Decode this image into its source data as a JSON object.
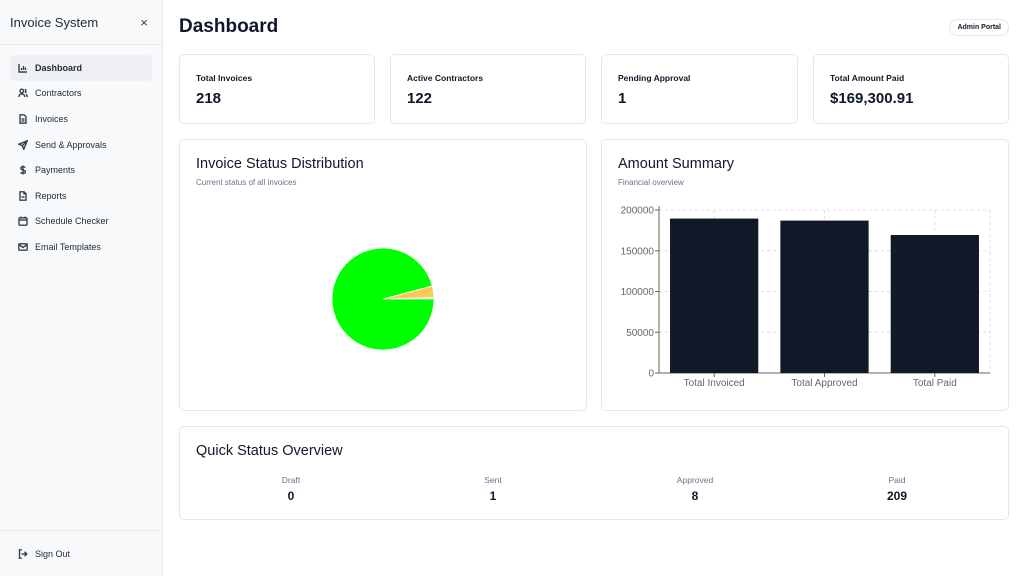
{
  "sidebar": {
    "title": "Invoice System",
    "close_icon": "×",
    "items": [
      {
        "label": "Dashboard",
        "icon": "bar-chart-icon",
        "active": true
      },
      {
        "label": "Contractors",
        "icon": "users-icon"
      },
      {
        "label": "Invoices",
        "icon": "file-icon"
      },
      {
        "label": "Send & Approvals",
        "icon": "send-icon"
      },
      {
        "label": "Payments",
        "icon": "dollar-icon"
      },
      {
        "label": "Reports",
        "icon": "report-icon"
      },
      {
        "label": "Schedule Checker",
        "icon": "calendar-icon"
      },
      {
        "label": "Email Templates",
        "icon": "mail-icon"
      }
    ],
    "sign_out": "Sign Out"
  },
  "header": {
    "title": "Dashboard",
    "badge": "Admin Portal"
  },
  "stats": [
    {
      "label": "Total Invoices",
      "value": "218"
    },
    {
      "label": "Active Contractors",
      "value": "122"
    },
    {
      "label": "Pending Approval",
      "value": "1"
    },
    {
      "label": "Total Amount Paid",
      "value": "$169,300.91"
    }
  ],
  "status_card": {
    "title": "Invoice Status Distribution",
    "subtitle": "Current status of all invoices"
  },
  "amount_card": {
    "title": "Amount Summary",
    "subtitle": "Financial overview"
  },
  "quick_status": {
    "title": "Quick Status Overview",
    "items": [
      {
        "label": "Draft",
        "value": "0"
      },
      {
        "label": "Sent",
        "value": "1"
      },
      {
        "label": "Approved",
        "value": "8"
      },
      {
        "label": "Paid",
        "value": "209"
      }
    ]
  },
  "colors": {
    "paid": "#00ff00",
    "approved": "#ffc658",
    "bar": "#111827"
  },
  "chart_data": [
    {
      "type": "pie",
      "slices": [
        {
          "value": 0,
          "color": "#8884d8"
        },
        {
          "value": 1,
          "color": "#82ca9d"
        },
        {
          "value": 8,
          "color": "#ffc658"
        },
        {
          "value": 209,
          "color": "#00ff00"
        }
      ]
    },
    {
      "type": "bar",
      "categories": [
        "Total Invoiced",
        "Total Approved",
        "Total Paid"
      ],
      "values": [
        189500,
        187000,
        169300.91
      ],
      "ylim": [
        0,
        200000
      ],
      "yticks": [
        "0",
        "50000",
        "100000",
        "150000",
        "200000"
      ],
      "grid": true
    }
  ]
}
